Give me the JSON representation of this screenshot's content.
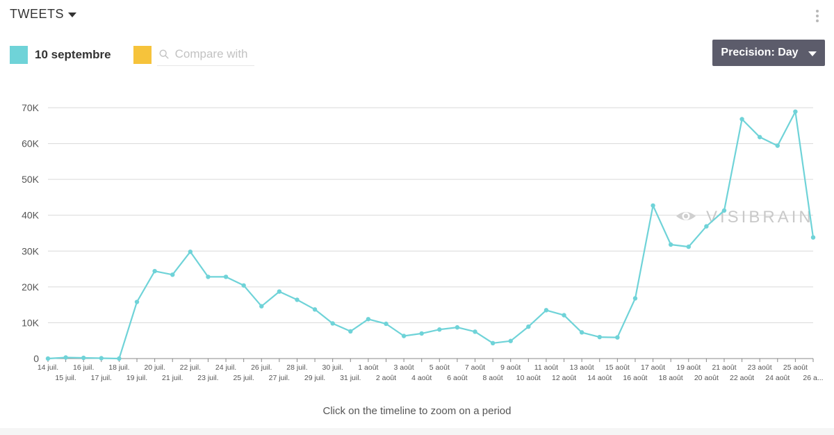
{
  "header": {
    "title": "TWEETS"
  },
  "legend": {
    "series_label": "10 septembre",
    "series_color": "#6fd3d8",
    "compare_color": "#f6c33b",
    "compare_placeholder": "Compare with"
  },
  "precision": {
    "label": "Precision: Day"
  },
  "watermark": {
    "text": "VISIBRAIN"
  },
  "hint": "Click on the timeline to zoom on a period",
  "chart_data": {
    "type": "line",
    "ylim": [
      0,
      70000
    ],
    "y_ticks": [
      0,
      10000,
      20000,
      30000,
      40000,
      50000,
      60000,
      70000
    ],
    "y_tick_labels": [
      "0",
      "10K",
      "20K",
      "30K",
      "40K",
      "50K",
      "60K",
      "70K"
    ],
    "grid": true,
    "x": [
      "14 juil.",
      "15 juil.",
      "16 juil.",
      "17 juil.",
      "18 juil.",
      "19 juil.",
      "20 juil.",
      "21 juil.",
      "22 juil.",
      "23 juil.",
      "24 juil.",
      "25 juil.",
      "26 juil.",
      "27 juil.",
      "28 juil.",
      "29 juil.",
      "30 juil.",
      "31 juil.",
      "1 août",
      "2 août",
      "3 août",
      "4 août",
      "5 août",
      "6 août",
      "7 août",
      "8 août",
      "9 août",
      "10 août",
      "11 août",
      "12 août",
      "13 août",
      "14 août",
      "15 août",
      "16 août",
      "17 août",
      "18 août",
      "19 août",
      "20 août",
      "21 août",
      "22 août",
      "23 août",
      "24 août",
      "25 août",
      "26 a..."
    ],
    "series": [
      {
        "name": "10 septembre",
        "color": "#6fd3d8",
        "values": [
          0,
          300,
          200,
          100,
          0,
          15800,
          24400,
          23400,
          29800,
          22800,
          22800,
          20400,
          14600,
          18700,
          16400,
          13700,
          9800,
          7600,
          11000,
          9700,
          6300,
          7000,
          8100,
          8700,
          7500,
          4300,
          4900,
          8900,
          13500,
          12100,
          7300,
          6000,
          5900,
          16800,
          42700,
          31800,
          31200,
          36900,
          41300,
          66800,
          61800,
          59400,
          68900,
          33800
        ]
      }
    ]
  }
}
